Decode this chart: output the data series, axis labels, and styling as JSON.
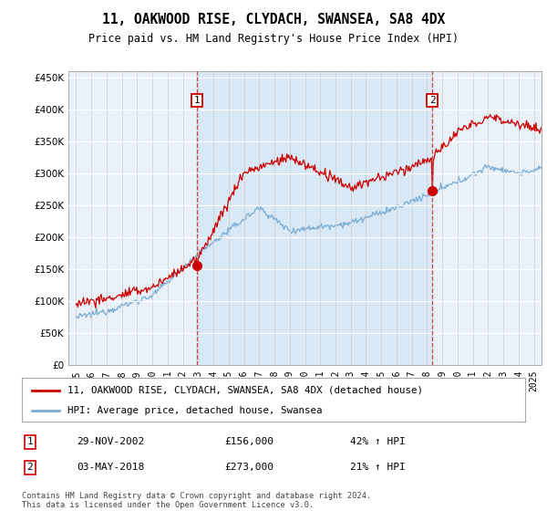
{
  "title": "11, OAKWOOD RISE, CLYDACH, SWANSEA, SA8 4DX",
  "subtitle": "Price paid vs. HM Land Registry's House Price Index (HPI)",
  "property_label": "11, OAKWOOD RISE, CLYDACH, SWANSEA, SA8 4DX (detached house)",
  "hpi_label": "HPI: Average price, detached house, Swansea",
  "transaction1_date": "29-NOV-2002",
  "transaction1_price": 156000,
  "transaction1_hpi": "42% ↑ HPI",
  "transaction2_date": "03-MAY-2018",
  "transaction2_price": 273000,
  "transaction2_hpi": "21% ↑ HPI",
  "footer": "Contains HM Land Registry data © Crown copyright and database right 2024.\nThis data is licensed under the Open Government Licence v3.0.",
  "property_color": "#cc0000",
  "hpi_color": "#7aadd4",
  "shade_color": "#d8e8f5",
  "background_color": "#e8f0f8",
  "plot_bg": "#e8f0f8",
  "ylim_min": 0,
  "ylim_max": 460000,
  "yticks": [
    0,
    50000,
    100000,
    150000,
    200000,
    250000,
    300000,
    350000,
    400000,
    450000
  ],
  "vline1_x": 2002.917,
  "vline2_x": 2018.336,
  "marker1_price": 156000,
  "marker2_price": 273000,
  "xlim_min": 1994.5,
  "xlim_max": 2025.5
}
